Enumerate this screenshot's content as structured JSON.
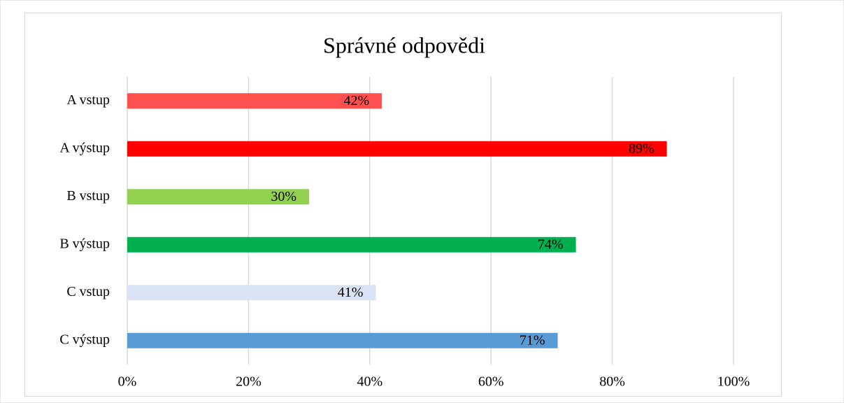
{
  "chart_data": {
    "type": "bar",
    "orientation": "horizontal",
    "title": "Správné odpovědi",
    "categories": [
      "A vstup",
      "A výstup",
      "B vstup",
      "B výstup",
      "C vstup",
      "C výstup"
    ],
    "values": [
      42,
      89,
      30,
      74,
      41,
      71
    ],
    "value_labels": [
      "42%",
      "89%",
      "30%",
      "74%",
      "41%",
      "71%"
    ],
    "colors": [
      "#ff5050",
      "#ff0000",
      "#92d050",
      "#00b050",
      "#dae3f3",
      "#5b9bd5"
    ],
    "xlim": [
      0,
      100
    ],
    "xticks": [
      {
        "value": 0,
        "label": "0%"
      },
      {
        "value": 20,
        "label": "20%"
      },
      {
        "value": 40,
        "label": "40%"
      },
      {
        "value": 60,
        "label": "60%"
      },
      {
        "value": 80,
        "label": "80%"
      },
      {
        "value": 100,
        "label": "100%"
      }
    ],
    "grid": true
  }
}
